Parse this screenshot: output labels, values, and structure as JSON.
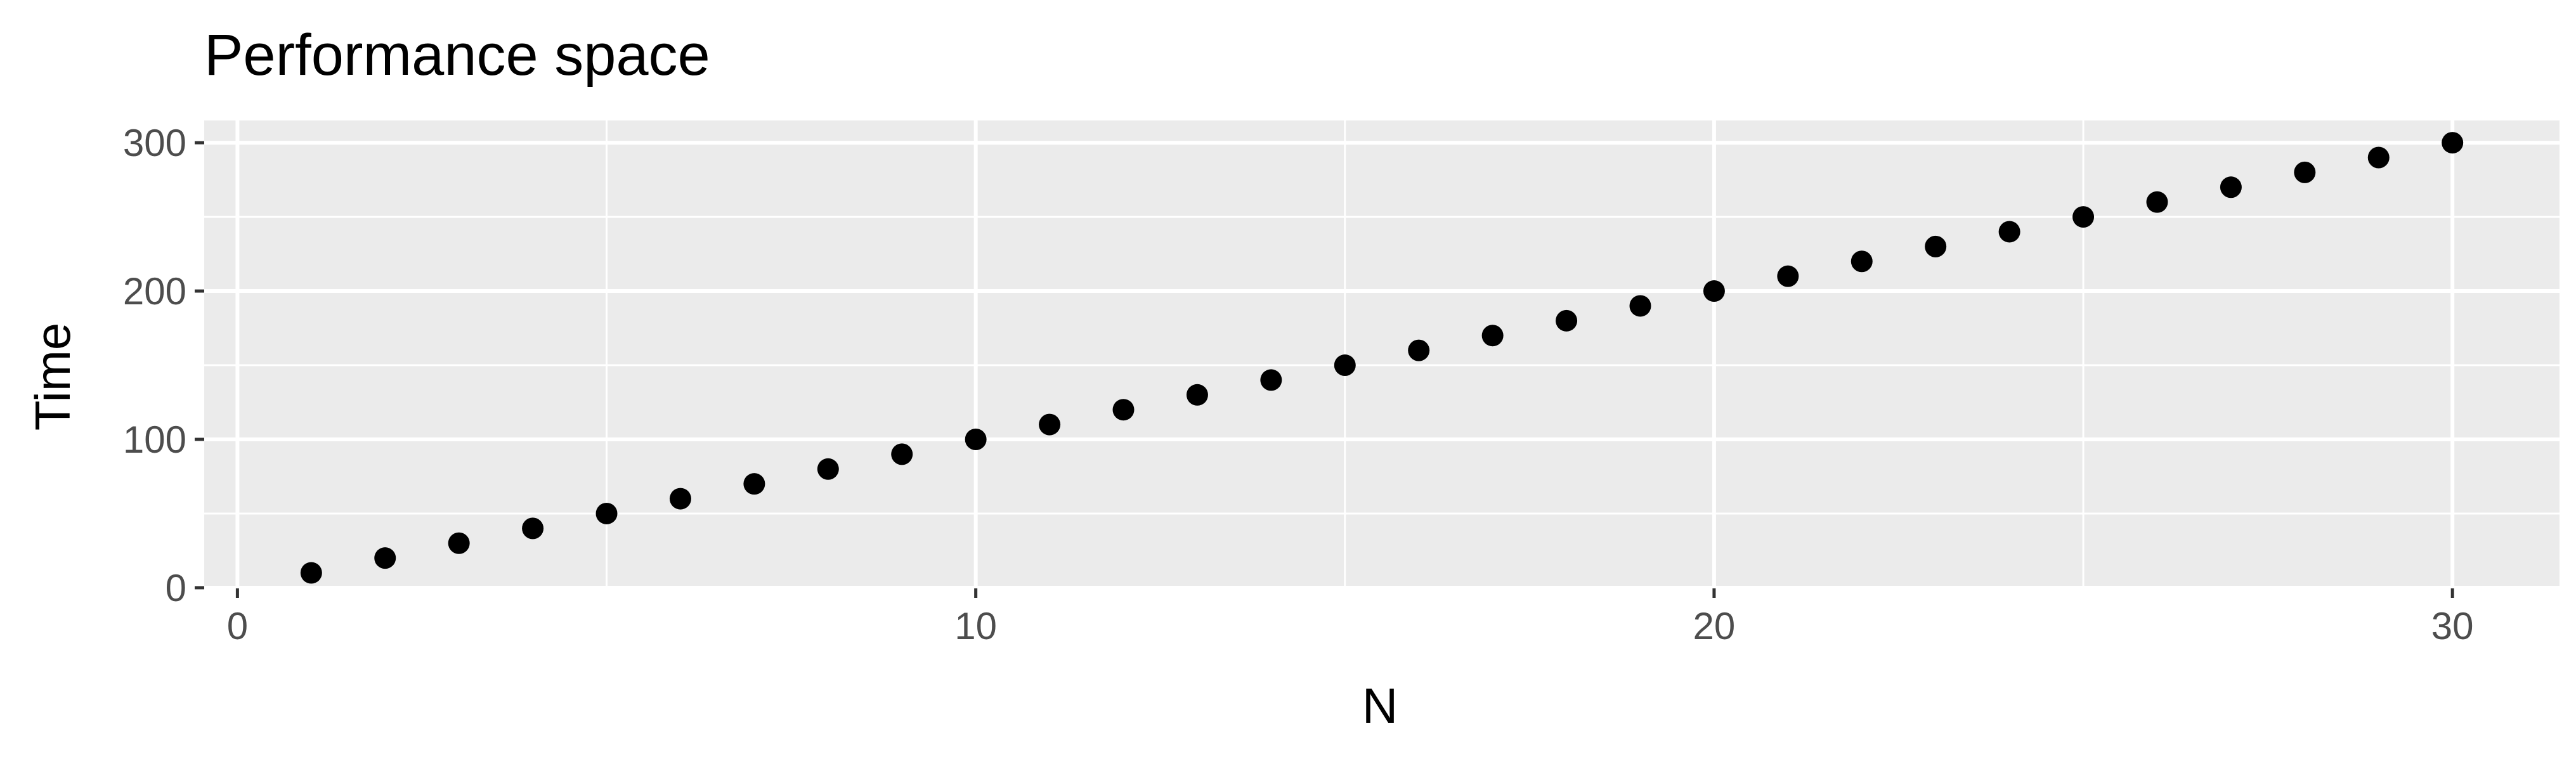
{
  "chart_data": {
    "type": "scatter",
    "title": "Performance space",
    "xlabel": "N",
    "ylabel": "Time",
    "xlim": [
      -0.45,
      31.45
    ],
    "ylim": [
      -0.45,
      315
    ],
    "x_ticks": [
      0,
      10,
      20,
      30
    ],
    "x_tick_labels": [
      "0",
      "10",
      "20",
      "30"
    ],
    "x_minor_ticks": [
      5,
      15,
      25
    ],
    "y_ticks": [
      0,
      100,
      200,
      300
    ],
    "y_tick_labels": [
      "0",
      "100",
      "200",
      "300"
    ],
    "y_minor_ticks": [
      50,
      150,
      250
    ],
    "grid": true,
    "colors": {
      "panel_background": "#EBEBEB",
      "grid_line": "#FFFFFF",
      "point": "#000000",
      "tick_label": "#4D4D4D",
      "tick_mark": "#333333"
    },
    "points": [
      {
        "x": 1,
        "y": 10
      },
      {
        "x": 2,
        "y": 20
      },
      {
        "x": 3,
        "y": 30
      },
      {
        "x": 4,
        "y": 40
      },
      {
        "x": 5,
        "y": 50
      },
      {
        "x": 6,
        "y": 60
      },
      {
        "x": 7,
        "y": 70
      },
      {
        "x": 8,
        "y": 80
      },
      {
        "x": 9,
        "y": 90
      },
      {
        "x": 10,
        "y": 100
      },
      {
        "x": 11,
        "y": 110
      },
      {
        "x": 12,
        "y": 120
      },
      {
        "x": 13,
        "y": 130
      },
      {
        "x": 14,
        "y": 140
      },
      {
        "x": 15,
        "y": 150
      },
      {
        "x": 16,
        "y": 160
      },
      {
        "x": 17,
        "y": 170
      },
      {
        "x": 18,
        "y": 180
      },
      {
        "x": 19,
        "y": 190
      },
      {
        "x": 20,
        "y": 200
      },
      {
        "x": 21,
        "y": 210
      },
      {
        "x": 22,
        "y": 220
      },
      {
        "x": 23,
        "y": 230
      },
      {
        "x": 24,
        "y": 240
      },
      {
        "x": 25,
        "y": 250
      },
      {
        "x": 26,
        "y": 260
      },
      {
        "x": 27,
        "y": 270
      },
      {
        "x": 28,
        "y": 280
      },
      {
        "x": 29,
        "y": 290
      },
      {
        "x": 30,
        "y": 300
      }
    ]
  }
}
